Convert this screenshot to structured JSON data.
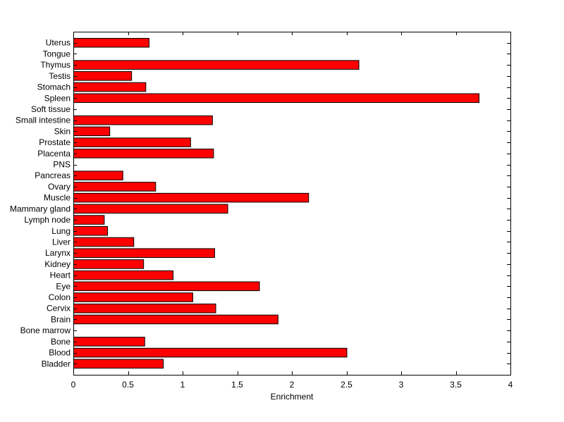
{
  "chart_data": {
    "type": "bar",
    "orientation": "horizontal",
    "categories": [
      "Uterus",
      "Tongue",
      "Thymus",
      "Testis",
      "Stomach",
      "Spleen",
      "Soft tissue",
      "Small intestine",
      "Skin",
      "Prostate",
      "Placenta",
      "PNS",
      "Pancreas",
      "Ovary",
      "Muscle",
      "Mammary gland",
      "Lymph node",
      "Lung",
      "Liver",
      "Larynx",
      "Kidney",
      "Heart",
      "Eye",
      "Colon",
      "Cervix",
      "Brain",
      "Bone marrow",
      "Bone",
      "Blood",
      "Bladder"
    ],
    "values": [
      0.69,
      0,
      2.61,
      0.53,
      0.66,
      3.71,
      0,
      1.27,
      0.33,
      1.07,
      1.28,
      0,
      0.45,
      0.75,
      2.15,
      1.41,
      0.28,
      0.31,
      0.55,
      1.29,
      0.64,
      0.91,
      1.7,
      1.09,
      1.3,
      1.87,
      0,
      0.65,
      2.5,
      0.82
    ],
    "xlabel": "Enrichment",
    "ylabel": "",
    "title": "",
    "xlim": [
      0,
      4
    ],
    "xticks": [
      "0",
      "0.5",
      "1",
      "1.5",
      "2",
      "2.5",
      "3",
      "3.5",
      "4"
    ],
    "bar_color": "#ff0000",
    "edge_color": "#000000",
    "grid": false
  }
}
